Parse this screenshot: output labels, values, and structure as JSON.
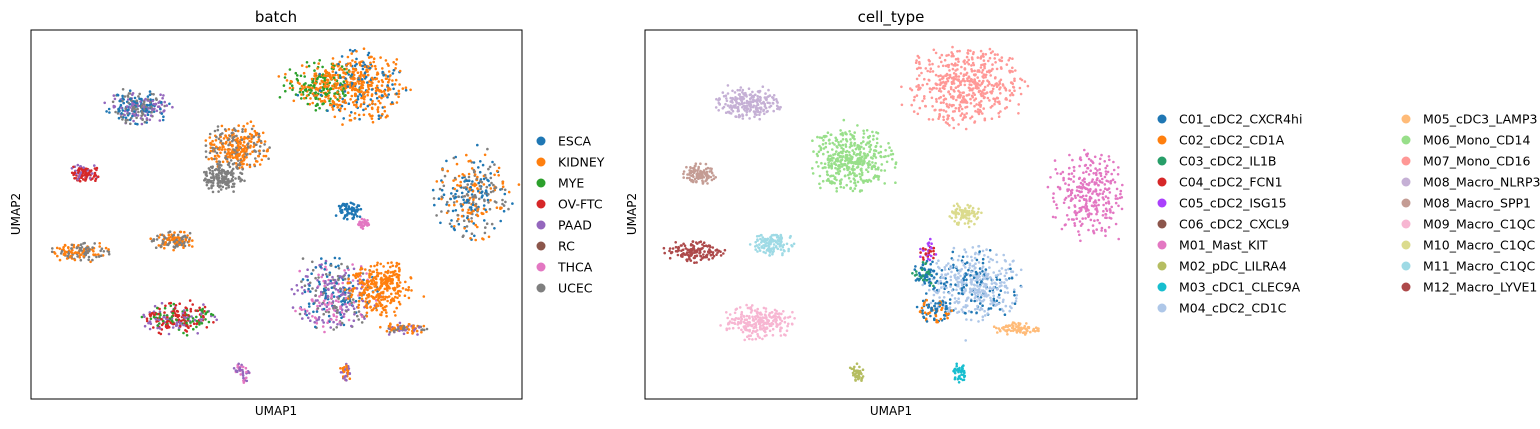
{
  "chart_data": [
    {
      "type": "scatter",
      "title": "batch",
      "xlabel": "UMAP1",
      "ylabel": "UMAP2",
      "grid": false,
      "ticks": false,
      "legend_placement": "right",
      "legend_entries": [
        {
          "name": "ESCA",
          "color": "#1f77b4"
        },
        {
          "name": "KIDNEY",
          "color": "#ff7f0e"
        },
        {
          "name": "MYE",
          "color": "#2ca02c"
        },
        {
          "name": "OV-FTC",
          "color": "#d62728"
        },
        {
          "name": "PAAD",
          "color": "#9467bd"
        },
        {
          "name": "RC",
          "color": "#8c564b"
        },
        {
          "name": "THCA",
          "color": "#e377c2"
        },
        {
          "name": "UCEC",
          "color": "#7f7f7f"
        }
      ],
      "xlim": [
        0,
        100
      ],
      "ylim": [
        0,
        100
      ],
      "clusters": [
        {
          "cx": 59,
          "cy": 85,
          "rx": 7,
          "ry": 6,
          "colors": [
            "#2ca02c",
            "#ff7f0e"
          ],
          "n": 260
        },
        {
          "cx": 67,
          "cy": 85,
          "rx": 9,
          "ry": 9,
          "colors": [
            "#ff7f0e",
            "#ff7f0e",
            "#ff7f0e",
            "#1f77b4"
          ],
          "n": 420
        },
        {
          "cx": 22,
          "cy": 79,
          "rx": 6,
          "ry": 4,
          "colors": [
            "#1f77b4",
            "#7f7f7f",
            "#9467bd"
          ],
          "n": 260
        },
        {
          "cx": 42,
          "cy": 68,
          "rx": 6,
          "ry": 6,
          "colors": [
            "#ff7f0e",
            "#ff7f0e",
            "#7f7f7f"
          ],
          "n": 320
        },
        {
          "cx": 39,
          "cy": 60,
          "rx": 4,
          "ry": 4,
          "colors": [
            "#7f7f7f"
          ],
          "n": 160
        },
        {
          "cx": 11,
          "cy": 61,
          "rx": 2.8,
          "ry": 2.6,
          "colors": [
            "#d62728",
            "#d62728",
            "#9467bd"
          ],
          "n": 110
        },
        {
          "cx": 90,
          "cy": 55,
          "rx": 7,
          "ry": 11,
          "colors": [
            "#ff7f0e",
            "#7f7f7f",
            "#1f77b4"
          ],
          "n": 300
        },
        {
          "cx": 65,
          "cy": 51,
          "rx": 2.4,
          "ry": 2.2,
          "colors": [
            "#1f77b4"
          ],
          "n": 70
        },
        {
          "cx": 67.5,
          "cy": 47.5,
          "rx": 1.4,
          "ry": 1.2,
          "colors": [
            "#e377c2"
          ],
          "n": 30
        },
        {
          "cx": 10,
          "cy": 40,
          "rx": 5.5,
          "ry": 2.6,
          "colors": [
            "#ff7f0e",
            "#7f7f7f"
          ],
          "n": 130
        },
        {
          "cx": 29,
          "cy": 43,
          "rx": 4,
          "ry": 2.6,
          "colors": [
            "#ff7f0e",
            "#7f7f7f"
          ],
          "n": 120
        },
        {
          "cx": 62,
          "cy": 28,
          "rx": 8,
          "ry": 9,
          "colors": [
            "#7f7f7f",
            "#e377c2",
            "#9467bd",
            "#1f77b4"
          ],
          "n": 380
        },
        {
          "cx": 71,
          "cy": 30,
          "rx": 6,
          "ry": 7,
          "colors": [
            "#ff7f0e"
          ],
          "n": 300
        },
        {
          "cx": 30,
          "cy": 22,
          "rx": 7,
          "ry": 4.2,
          "colors": [
            "#2ca02c",
            "#9467bd",
            "#d62728",
            "#d62728"
          ],
          "n": 240
        },
        {
          "cx": 76,
          "cy": 19,
          "rx": 4.5,
          "ry": 1.6,
          "colors": [
            "#ff7f0e",
            "#7f7f7f",
            "#9467bd"
          ],
          "n": 80
        },
        {
          "cx": 43,
          "cy": 7,
          "rx": 1.6,
          "ry": 2.4,
          "colors": [
            "#9467bd",
            "#e377c2"
          ],
          "n": 40
        },
        {
          "cx": 64,
          "cy": 7,
          "rx": 1.2,
          "ry": 2.4,
          "colors": [
            "#ff7f0e",
            "#9467bd"
          ],
          "n": 40
        }
      ]
    },
    {
      "type": "scatter",
      "title": "cell_type",
      "xlabel": "UMAP1",
      "ylabel": "UMAP2",
      "grid": false,
      "ticks": false,
      "legend_placement": "right",
      "legend_entries": [
        {
          "name": "C01_cDC2_CXCR4hi",
          "color": "#1f77b4"
        },
        {
          "name": "C02_cDC2_CD1A",
          "color": "#ff7f0e"
        },
        {
          "name": "C03_cDC2_IL1B",
          "color": "#279e68"
        },
        {
          "name": "C04_cDC2_FCN1",
          "color": "#d62728"
        },
        {
          "name": "C05_cDC2_ISG15",
          "color": "#aa40fc"
        },
        {
          "name": "C06_cDC2_CXCL9",
          "color": "#8c564b"
        },
        {
          "name": "M01_Mast_KIT",
          "color": "#e377c2"
        },
        {
          "name": "M02_pDC_LILRA4",
          "color": "#b5bd61"
        },
        {
          "name": "M03_cDC1_CLEC9A",
          "color": "#17becf"
        },
        {
          "name": "M04_cDC2_CD1C",
          "color": "#aec7e8"
        },
        {
          "name": "M05_cDC3_LAMP3",
          "color": "#ffbb78"
        },
        {
          "name": "M06_Mono_CD14",
          "color": "#98df8a"
        },
        {
          "name": "M07_Mono_CD16",
          "color": "#ff9896"
        },
        {
          "name": "M08_Macro_NLRP3",
          "color": "#c5b0d5"
        },
        {
          "name": "M08_Macro_SPP1",
          "color": "#c49c94"
        },
        {
          "name": "M09_Macro_C1QC",
          "color": "#f7b6d2"
        },
        {
          "name": "M10_Macro_C1QC",
          "color": "#dbdb8d"
        },
        {
          "name": "M11_Macro_C1QC",
          "color": "#9edae5"
        },
        {
          "name": "M12_Macro_LYVE1",
          "color": "#ad494a"
        }
      ],
      "xlim": [
        0,
        100
      ],
      "ylim": [
        0,
        100
      ],
      "clusters": [
        {
          "cx": 65,
          "cy": 85,
          "rx": 11,
          "ry": 10,
          "colors": [
            "#ff9896"
          ],
          "n": 520
        },
        {
          "cx": 21,
          "cy": 80,
          "rx": 6,
          "ry": 4,
          "colors": [
            "#c5b0d5"
          ],
          "n": 220
        },
        {
          "cx": 42,
          "cy": 65,
          "rx": 8,
          "ry": 8,
          "colors": [
            "#98df8a"
          ],
          "n": 420
        },
        {
          "cx": 11,
          "cy": 61,
          "rx": 3,
          "ry": 2.8,
          "colors": [
            "#c49c94"
          ],
          "n": 110
        },
        {
          "cx": 90,
          "cy": 55,
          "rx": 7,
          "ry": 11,
          "colors": [
            "#e377c2"
          ],
          "n": 300
        },
        {
          "cx": 65,
          "cy": 50,
          "rx": 3,
          "ry": 3,
          "colors": [
            "#dbdb8d"
          ],
          "n": 90
        },
        {
          "cx": 26,
          "cy": 42,
          "rx": 4,
          "ry": 2.8,
          "colors": [
            "#9edae5"
          ],
          "n": 120
        },
        {
          "cx": 10,
          "cy": 40,
          "rx": 5.5,
          "ry": 2.8,
          "colors": [
            "#ad494a"
          ],
          "n": 140
        },
        {
          "cx": 67,
          "cy": 31,
          "rx": 9,
          "ry": 9,
          "colors": [
            "#aec7e8",
            "#aec7e8",
            "#aec7e8",
            "#1f77b4"
          ],
          "n": 480
        },
        {
          "cx": 57,
          "cy": 34,
          "rx": 2.8,
          "ry": 3.5,
          "colors": [
            "#279e68",
            "#1f77b4"
          ],
          "n": 70
        },
        {
          "cx": 59,
          "cy": 24,
          "rx": 3.5,
          "ry": 3,
          "colors": [
            "#ff7f0e",
            "#1f77b4"
          ],
          "n": 90
        },
        {
          "cx": 57.5,
          "cy": 40,
          "rx": 1.6,
          "ry": 2.5,
          "colors": [
            "#d62728",
            "#aa40fc"
          ],
          "n": 40
        },
        {
          "cx": 23,
          "cy": 21,
          "rx": 7,
          "ry": 4.2,
          "colors": [
            "#f7b6d2"
          ],
          "n": 240
        },
        {
          "cx": 76,
          "cy": 19,
          "rx": 4.5,
          "ry": 1.6,
          "colors": [
            "#ffbb78"
          ],
          "n": 80
        },
        {
          "cx": 43,
          "cy": 7,
          "rx": 1.6,
          "ry": 2.4,
          "colors": [
            "#b5bd61"
          ],
          "n": 40
        },
        {
          "cx": 64,
          "cy": 7,
          "rx": 1.4,
          "ry": 2.4,
          "colors": [
            "#17becf"
          ],
          "n": 40
        }
      ]
    }
  ]
}
